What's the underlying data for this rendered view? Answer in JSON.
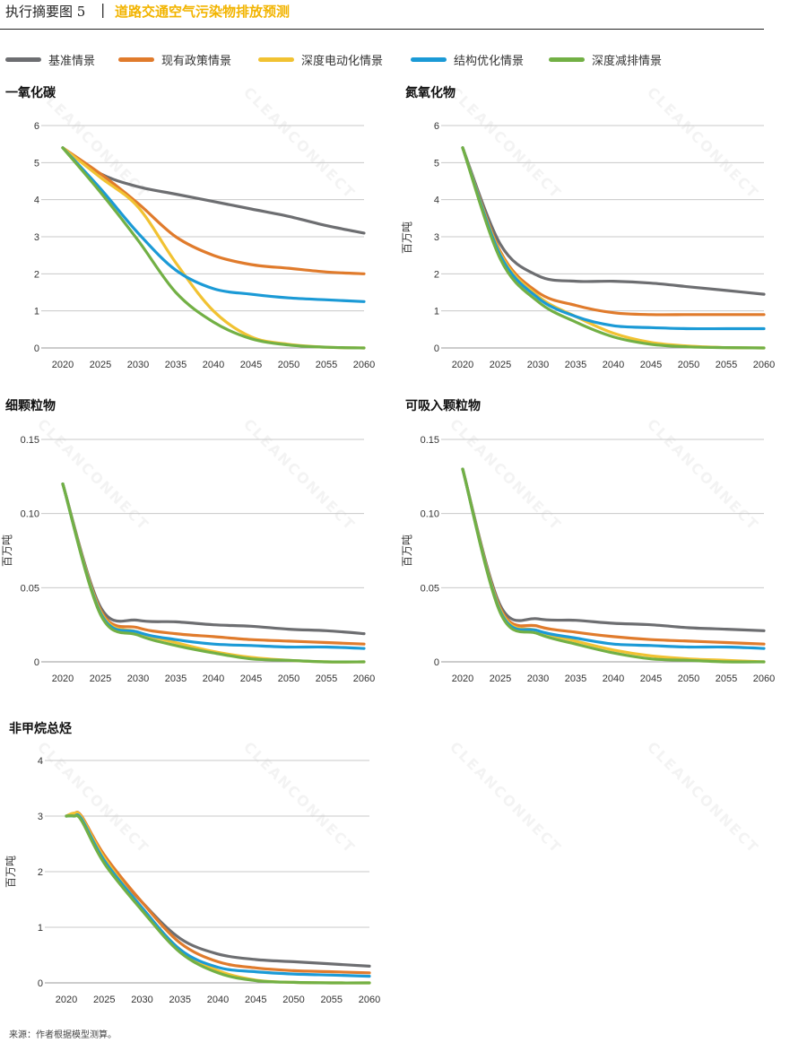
{
  "header": {
    "prefix": "执行摘要图 5",
    "separator": "|",
    "title": "道路交通空气污染物排放预测"
  },
  "legend": [
    {
      "name": "基准情景",
      "color": "#6d6e71"
    },
    {
      "name": "现有政策情景",
      "color": "#e07b2c"
    },
    {
      "name": "深度电动化情景",
      "color": "#f1c232"
    },
    {
      "name": "结构优化情景",
      "color": "#1b9ad6"
    },
    {
      "name": "深度减排情景",
      "color": "#72b045"
    }
  ],
  "watermark": "CLEANCONNECT",
  "source": "来源：作者根据模型测算。",
  "chart_data": [
    {
      "type": "line",
      "title": "一氧化碳",
      "ylabel": "",
      "ylim": [
        0,
        6
      ],
      "yticks": [
        "0",
        "1",
        "2",
        "3",
        "4",
        "5",
        "6"
      ],
      "xticks": [
        "2020",
        "2025",
        "2030",
        "2035",
        "2040",
        "2045",
        "2050",
        "2055",
        "2060"
      ],
      "x": [
        2020,
        2025,
        2030,
        2035,
        2040,
        2045,
        2050,
        2055,
        2060
      ],
      "series": [
        {
          "name": "基准情景",
          "values": [
            5.4,
            4.7,
            4.35,
            4.15,
            3.95,
            3.75,
            3.55,
            3.3,
            3.1
          ]
        },
        {
          "name": "现有政策情景",
          "values": [
            5.4,
            4.7,
            3.9,
            3.0,
            2.5,
            2.25,
            2.15,
            2.05,
            2.0
          ]
        },
        {
          "name": "深度电动化情景",
          "values": [
            5.4,
            4.6,
            3.8,
            2.3,
            1.0,
            0.3,
            0.1,
            0.02,
            0.0
          ]
        },
        {
          "name": "结构优化情景",
          "values": [
            5.4,
            4.3,
            3.1,
            2.1,
            1.6,
            1.45,
            1.35,
            1.3,
            1.25
          ]
        },
        {
          "name": "深度减排情景",
          "values": [
            5.4,
            4.2,
            2.9,
            1.5,
            0.7,
            0.25,
            0.08,
            0.02,
            0.0
          ]
        }
      ]
    },
    {
      "type": "line",
      "title": "氮氧化物",
      "ylabel": "百万吨",
      "ylim": [
        0,
        6
      ],
      "yticks": [
        "0",
        "1",
        "2",
        "3",
        "4",
        "5",
        "6"
      ],
      "xticks": [
        "2020",
        "2025",
        "2030",
        "2035",
        "2040",
        "2045",
        "2050",
        "2055",
        "2060"
      ],
      "x": [
        2020,
        2025,
        2030,
        2035,
        2040,
        2045,
        2050,
        2055,
        2060
      ],
      "series": [
        {
          "name": "基准情景",
          "values": [
            5.4,
            2.8,
            1.95,
            1.8,
            1.8,
            1.75,
            1.65,
            1.55,
            1.45
          ]
        },
        {
          "name": "现有政策情景",
          "values": [
            5.4,
            2.6,
            1.5,
            1.15,
            0.95,
            0.9,
            0.9,
            0.9,
            0.9
          ]
        },
        {
          "name": "深度电动化情景",
          "values": [
            5.4,
            2.55,
            1.4,
            0.85,
            0.4,
            0.15,
            0.05,
            0.01,
            0.0
          ]
        },
        {
          "name": "结构优化情景",
          "values": [
            5.4,
            2.5,
            1.35,
            0.85,
            0.6,
            0.55,
            0.52,
            0.52,
            0.52
          ]
        },
        {
          "name": "深度减排情景",
          "values": [
            5.4,
            2.4,
            1.25,
            0.7,
            0.3,
            0.1,
            0.03,
            0.01,
            0.0
          ]
        }
      ]
    },
    {
      "type": "line",
      "title": "细颗粒物",
      "ylabel": "百万吨",
      "ylim": [
        0,
        0.15
      ],
      "yticks": [
        "0",
        "0.05",
        "0.10",
        "0.15"
      ],
      "xticks": [
        "2020",
        "2025",
        "2030",
        "2035",
        "2040",
        "2045",
        "2050",
        "2055",
        "2060"
      ],
      "x": [
        2020,
        2025,
        2030,
        2035,
        2040,
        2045,
        2050,
        2055,
        2060
      ],
      "series": [
        {
          "name": "基准情景",
          "values": [
            0.12,
            0.037,
            0.028,
            0.027,
            0.025,
            0.024,
            0.022,
            0.021,
            0.019
          ]
        },
        {
          "name": "现有政策情景",
          "values": [
            0.12,
            0.035,
            0.023,
            0.019,
            0.017,
            0.015,
            0.014,
            0.013,
            0.012
          ]
        },
        {
          "name": "深度电动化情景",
          "values": [
            0.12,
            0.034,
            0.02,
            0.013,
            0.007,
            0.003,
            0.001,
            0.0,
            0.0
          ]
        },
        {
          "name": "结构优化情景",
          "values": [
            0.12,
            0.033,
            0.02,
            0.015,
            0.012,
            0.011,
            0.01,
            0.01,
            0.009
          ]
        },
        {
          "name": "深度减排情景",
          "values": [
            0.12,
            0.032,
            0.018,
            0.011,
            0.006,
            0.002,
            0.001,
            0.0,
            0.0
          ]
        }
      ]
    },
    {
      "type": "line",
      "title": "可吸入颗粒物",
      "ylabel": "百万吨",
      "ylim": [
        0,
        0.15
      ],
      "yticks": [
        "0",
        "0.05",
        "0.10",
        "0.15"
      ],
      "xticks": [
        "2020",
        "2025",
        "2030",
        "2035",
        "2040",
        "2045",
        "2050",
        "2055",
        "2060"
      ],
      "x": [
        2020,
        2025,
        2030,
        2035,
        2040,
        2045,
        2050,
        2055,
        2060
      ],
      "series": [
        {
          "name": "基准情景",
          "values": [
            0.13,
            0.038,
            0.029,
            0.028,
            0.026,
            0.025,
            0.023,
            0.022,
            0.021
          ]
        },
        {
          "name": "现有政策情景",
          "values": [
            0.13,
            0.036,
            0.024,
            0.02,
            0.017,
            0.015,
            0.014,
            0.013,
            0.012
          ]
        },
        {
          "name": "深度电动化情景",
          "values": [
            0.13,
            0.035,
            0.021,
            0.014,
            0.008,
            0.004,
            0.002,
            0.001,
            0.0
          ]
        },
        {
          "name": "结构优化情景",
          "values": [
            0.13,
            0.034,
            0.021,
            0.016,
            0.012,
            0.011,
            0.01,
            0.01,
            0.009
          ]
        },
        {
          "name": "深度减排情景",
          "values": [
            0.13,
            0.033,
            0.019,
            0.012,
            0.006,
            0.002,
            0.001,
            0.0,
            0.0
          ]
        }
      ]
    },
    {
      "type": "line",
      "title": "非甲烷总烃",
      "ylabel": "百万吨",
      "ylim": [
        0,
        4
      ],
      "yticks": [
        "0",
        "1",
        "2",
        "3",
        "4"
      ],
      "xticks": [
        "2020",
        "2025",
        "2030",
        "2035",
        "2040",
        "2045",
        "2050",
        "2055",
        "2060"
      ],
      "x": [
        2020,
        2021,
        2022,
        2025,
        2030,
        2035,
        2040,
        2045,
        2050,
        2055,
        2060
      ],
      "series": [
        {
          "name": "基准情景",
          "values": [
            3.0,
            3.02,
            2.95,
            2.25,
            1.45,
            0.8,
            0.52,
            0.42,
            0.38,
            0.34,
            0.3
          ]
        },
        {
          "name": "现有政策情景",
          "values": [
            3.0,
            3.05,
            3.0,
            2.3,
            1.45,
            0.72,
            0.38,
            0.27,
            0.22,
            0.2,
            0.18
          ]
        },
        {
          "name": "深度电动化情景",
          "values": [
            3.0,
            3.05,
            2.98,
            2.25,
            1.35,
            0.6,
            0.22,
            0.05,
            0.01,
            0.0,
            0.0
          ]
        },
        {
          "name": "结构优化情景",
          "values": [
            3.0,
            3.0,
            2.95,
            2.2,
            1.35,
            0.6,
            0.28,
            0.2,
            0.16,
            0.14,
            0.12
          ]
        },
        {
          "name": "深度减排情景",
          "values": [
            3.0,
            3.0,
            2.92,
            2.15,
            1.3,
            0.55,
            0.18,
            0.04,
            0.01,
            0.0,
            0.0
          ]
        }
      ]
    }
  ]
}
